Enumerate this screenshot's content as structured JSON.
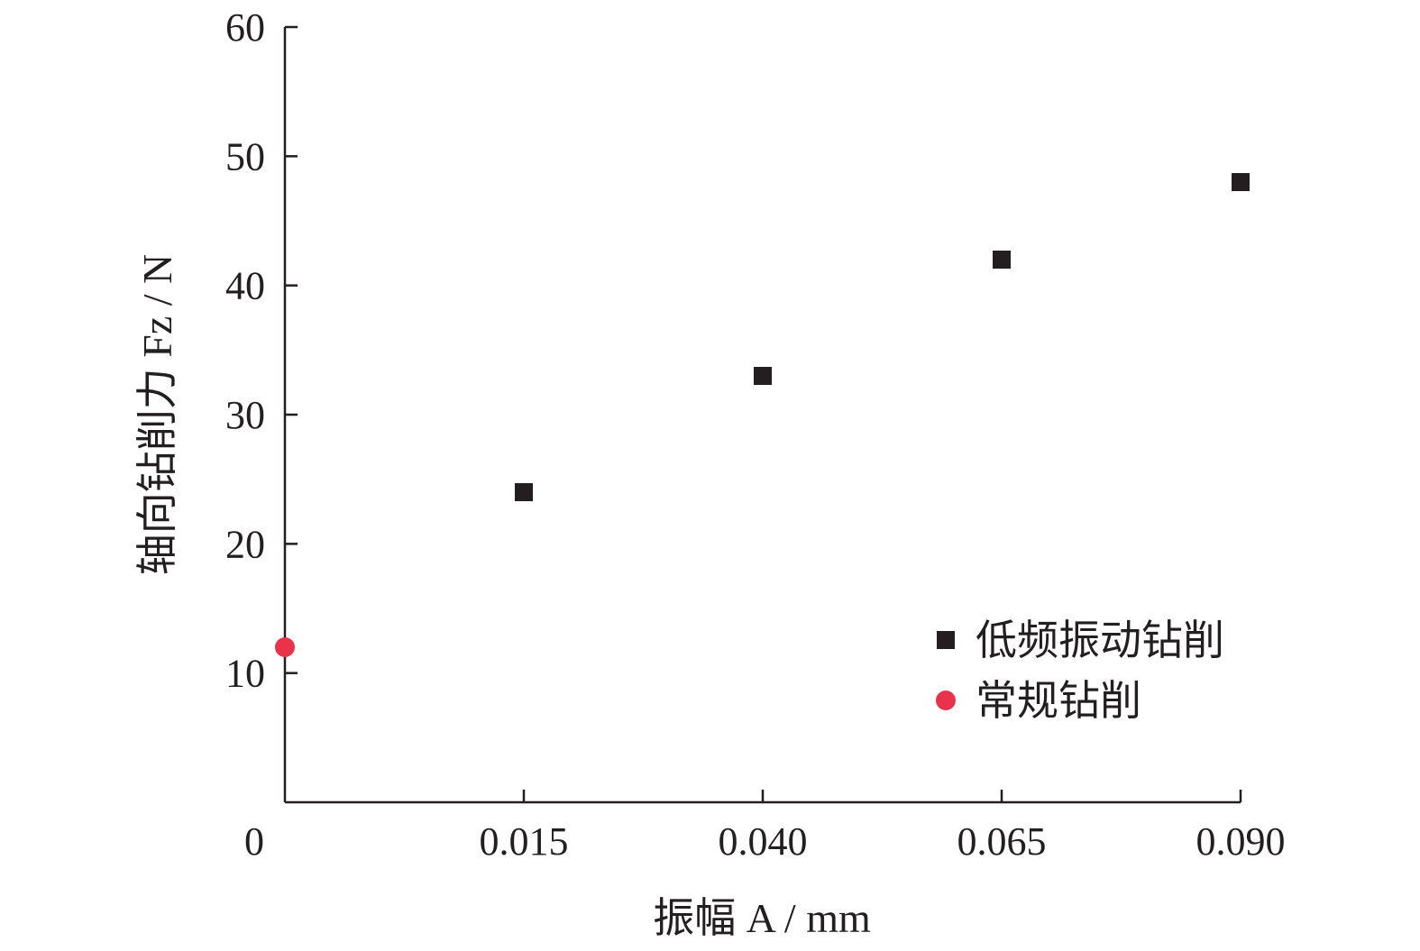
{
  "chart_data": {
    "type": "scatter",
    "xlabel": "振幅 A / mm",
    "ylabel": "轴向钻削力 Fz / N",
    "x_tick_labels": [
      "0",
      "0.015",
      "0.040",
      "0.065",
      "0.090"
    ],
    "y_tick_labels": [
      "10",
      "20",
      "30",
      "40",
      "50",
      "60"
    ],
    "y_ticks": [
      10,
      20,
      30,
      40,
      50,
      60
    ],
    "ylim": [
      0,
      60
    ],
    "grid": false,
    "legend_position": "lower-right",
    "series": [
      {
        "name": "低频振动钻削",
        "marker": "square",
        "color": "#231f20",
        "points": [
          {
            "x": 0.015,
            "y": 24
          },
          {
            "x": 0.04,
            "y": 33
          },
          {
            "x": 0.065,
            "y": 42
          },
          {
            "x": 0.09,
            "y": 48
          }
        ]
      },
      {
        "name": "常规钻削",
        "marker": "circle",
        "color": "#e8334a",
        "points": [
          {
            "x": 0,
            "y": 12
          }
        ]
      }
    ]
  }
}
